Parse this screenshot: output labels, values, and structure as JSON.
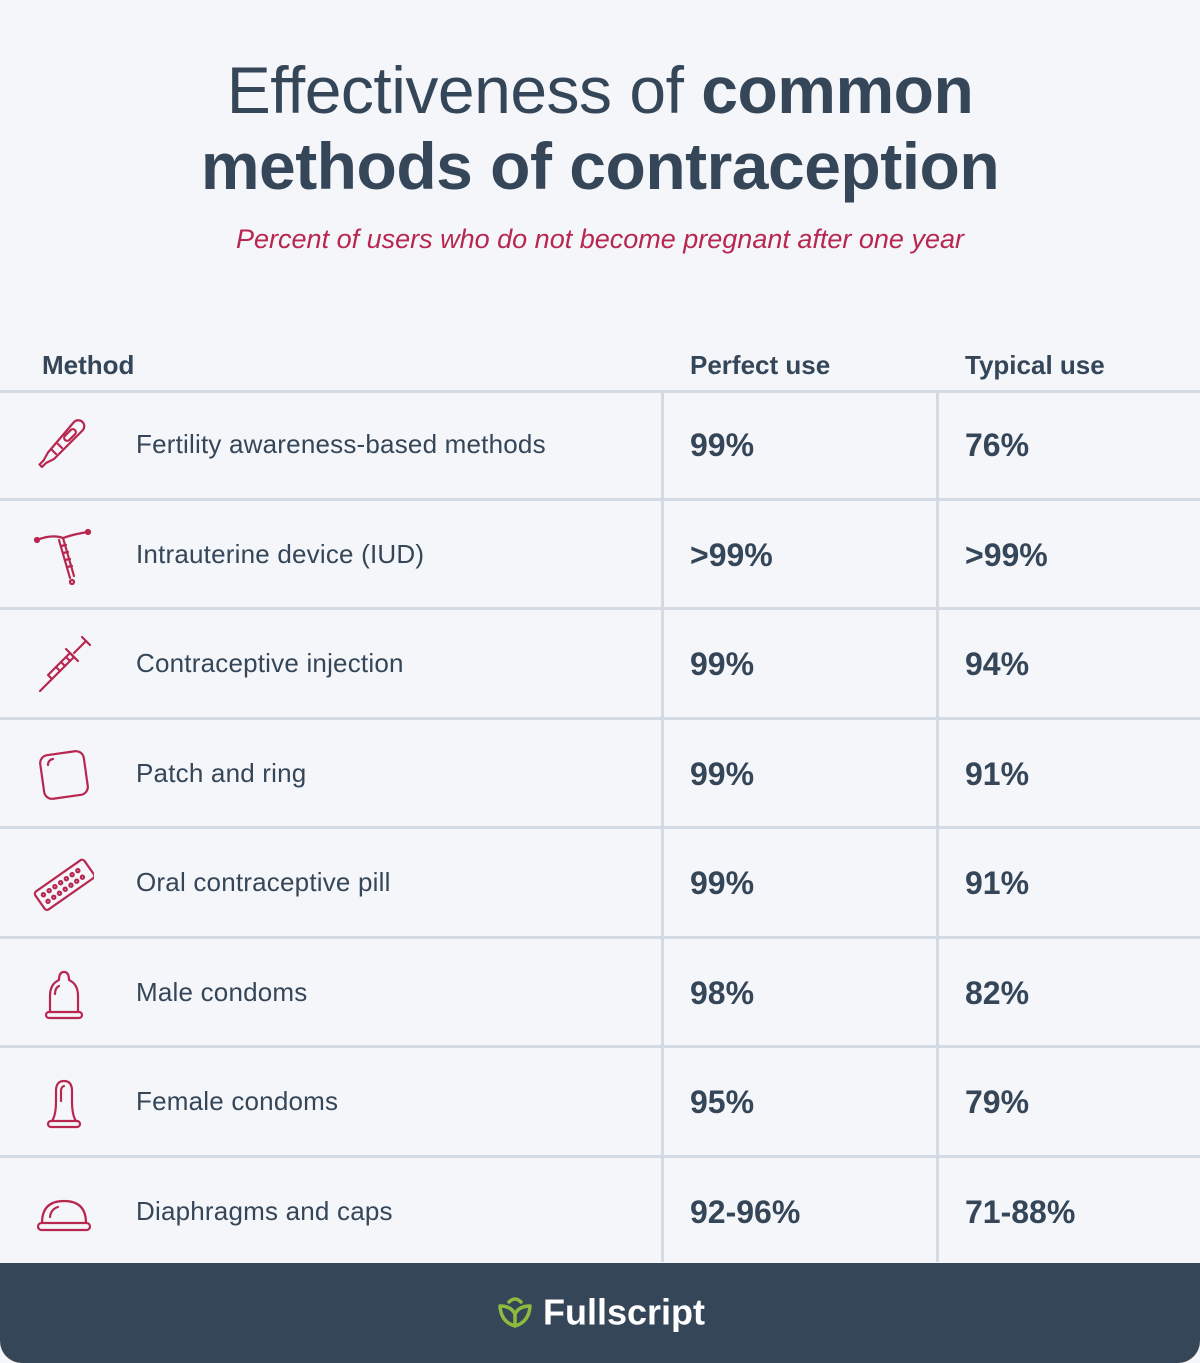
{
  "title": {
    "part1": "Effectiveness of ",
    "part2": "common",
    "line2": "methods of contraception"
  },
  "subtitle": "Percent of users who do not become pregnant after one year",
  "table": {
    "headers": {
      "method": "Method",
      "perfect": "Perfect use",
      "typical": "Typical use"
    },
    "rows": [
      {
        "icon": "thermometer-icon",
        "method": "Fertility awareness-based methods",
        "perfect": "99%",
        "typical": "76%"
      },
      {
        "icon": "iud-icon",
        "method": "Intrauterine device (IUD)",
        "perfect": ">99%",
        "typical": ">99%"
      },
      {
        "icon": "syringe-icon",
        "method": "Contraceptive injection",
        "perfect": "99%",
        "typical": "94%"
      },
      {
        "icon": "patch-icon",
        "method": "Patch and ring",
        "perfect": "99%",
        "typical": "91%"
      },
      {
        "icon": "pill-pack-icon",
        "method": "Oral contraceptive pill",
        "perfect": "99%",
        "typical": "91%"
      },
      {
        "icon": "male-condom-icon",
        "method": "Male condoms",
        "perfect": "98%",
        "typical": "82%"
      },
      {
        "icon": "female-condom-icon",
        "method": "Female condoms",
        "perfect": "95%",
        "typical": "79%"
      },
      {
        "icon": "diaphragm-icon",
        "method": "Diaphragms and caps",
        "perfect": "92-96%",
        "typical": "71-88%"
      }
    ]
  },
  "footer": {
    "brand": "Fullscript",
    "logo_icon": "leaf-logo-icon"
  },
  "colors": {
    "text": "#354659",
    "accent": "#b8274f",
    "divider": "#d3dae3",
    "background": "#f4f6fa",
    "footer": "#354659",
    "logo_green": "#8dbb3e"
  }
}
